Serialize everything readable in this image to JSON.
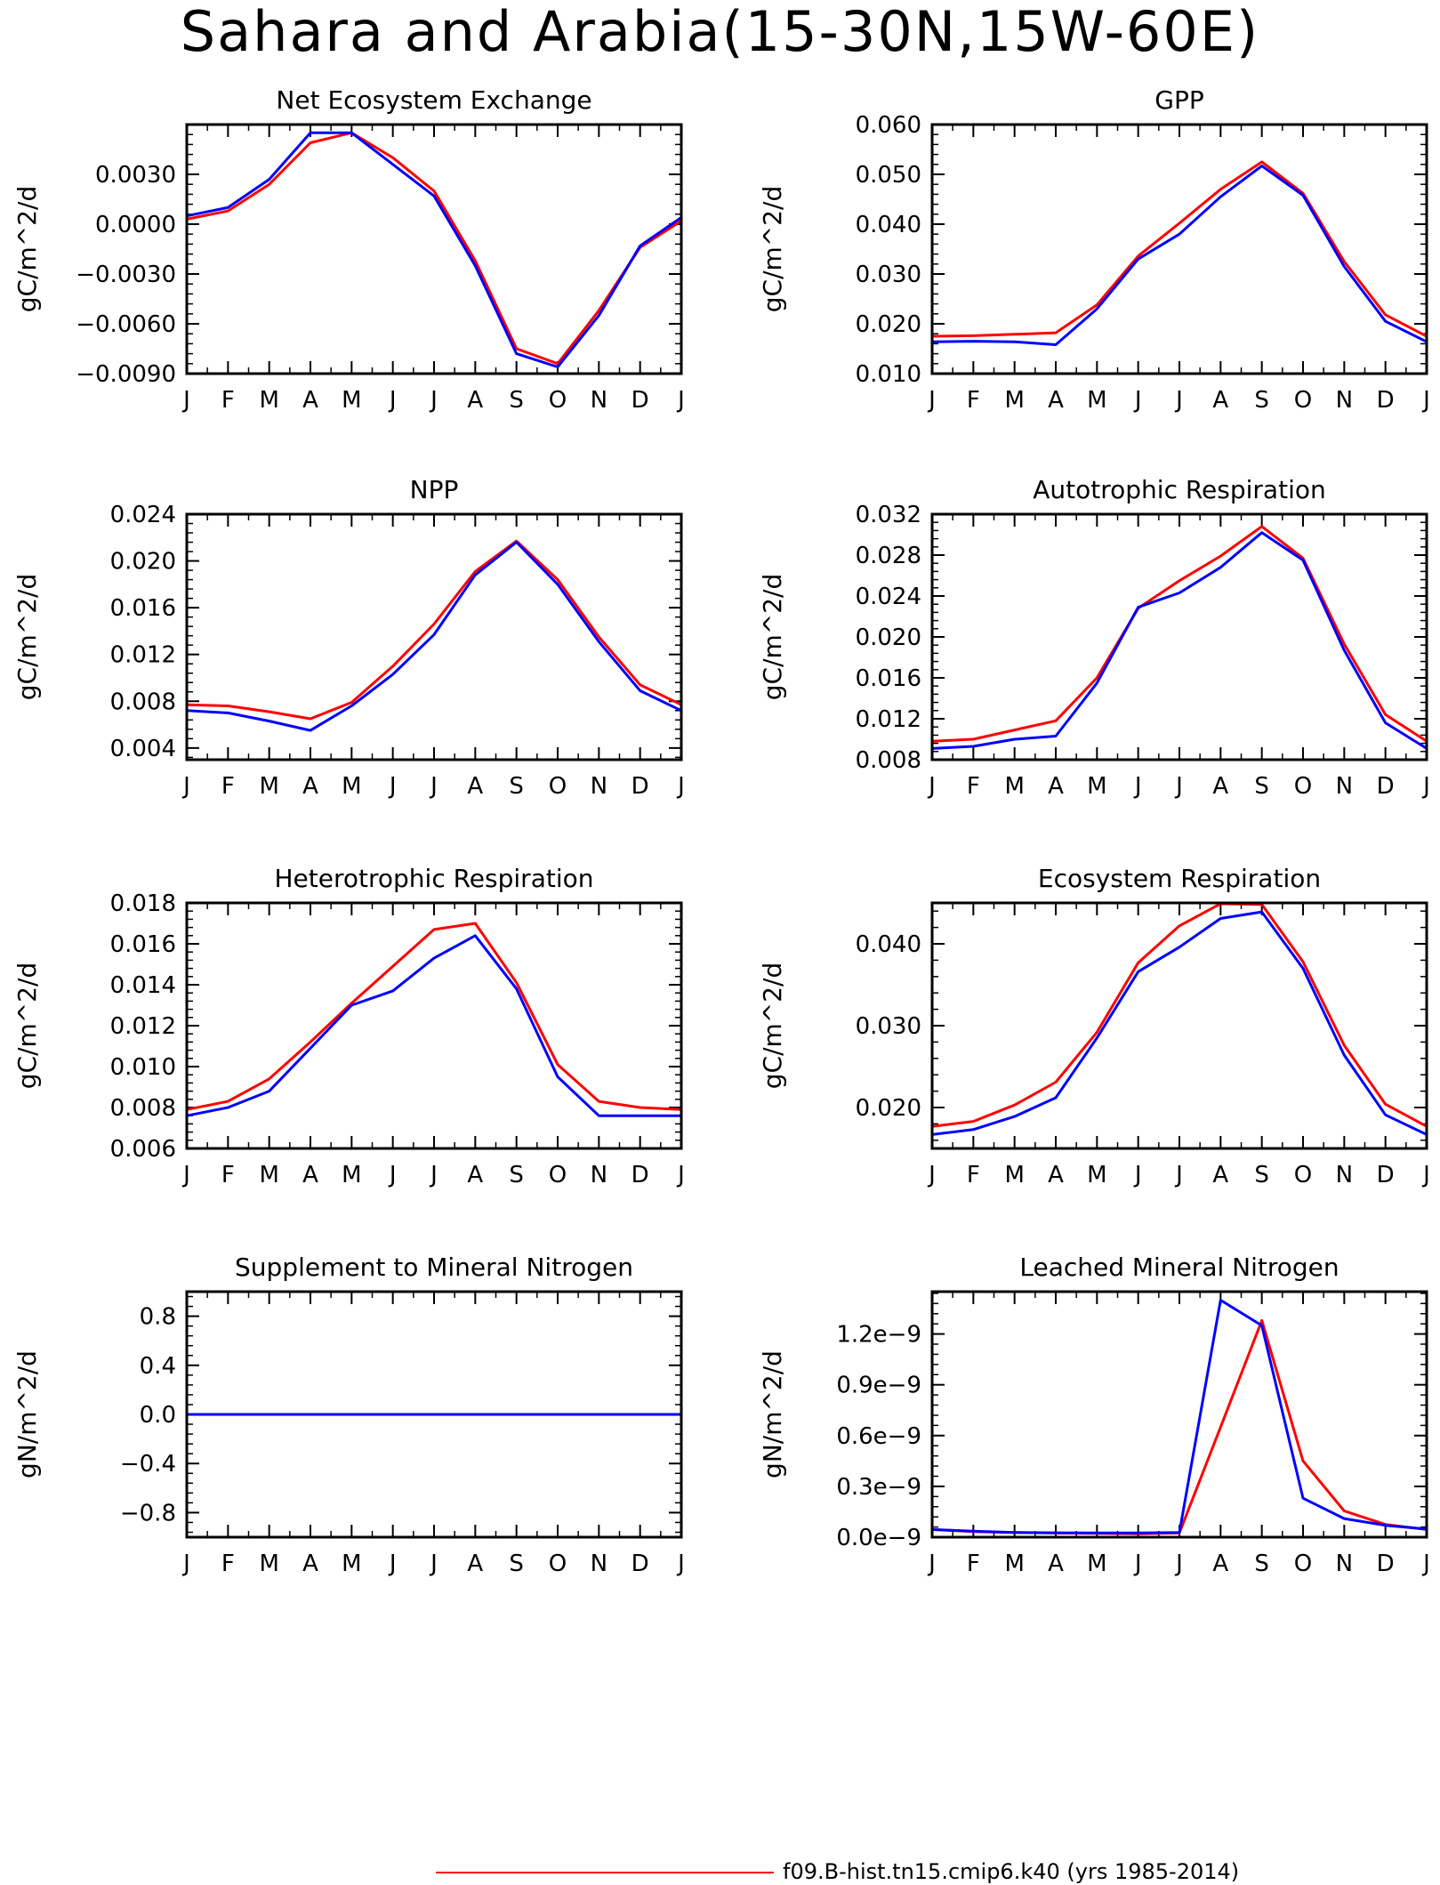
{
  "title": "Sahara and Arabia(15-30N,15W-60E)",
  "legend": {
    "label": "f09.B-hist.tn15.cmip6.k40 (yrs 1985-2014)",
    "color": "#ff0000"
  },
  "colors": {
    "case_a": "#ff0000",
    "case_b": "#0000ff",
    "axes": "#000000"
  },
  "chart_data": [
    {
      "type": "line",
      "title": "Net Ecosystem Exchange",
      "ylabel": "gC/m^2/d",
      "categories": [
        "J",
        "F",
        "M",
        "A",
        "M",
        "J",
        "J",
        "A",
        "S",
        "O",
        "N",
        "D",
        "J"
      ],
      "ylim": [
        -0.009,
        0.006
      ],
      "yticks": [
        -0.009,
        -0.006,
        -0.003,
        0.0,
        0.003
      ],
      "ytick_labels": [
        "−0.0090",
        "−0.0060",
        "−0.0030",
        "0.0000",
        "0.0030"
      ],
      "series": [
        {
          "color": "#ff0000",
          "values": [
            0.0003,
            0.0008,
            0.0024,
            0.0049,
            0.0055,
            0.004,
            0.002,
            -0.0022,
            -0.0075,
            -0.0084,
            -0.0052,
            -0.0014,
            0.0002
          ]
        },
        {
          "color": "#0000ff",
          "values": [
            0.0005,
            0.001,
            0.0027,
            0.0055,
            0.0055,
            0.0036,
            0.0017,
            -0.0025,
            -0.0078,
            -0.0086,
            -0.0055,
            -0.0013,
            0.0004
          ]
        }
      ]
    },
    {
      "type": "line",
      "title": "GPP",
      "ylabel": "gC/m^2/d",
      "categories": [
        "J",
        "F",
        "M",
        "A",
        "M",
        "J",
        "J",
        "A",
        "S",
        "O",
        "N",
        "D",
        "J"
      ],
      "ylim": [
        0.01,
        0.06
      ],
      "yticks": [
        0.01,
        0.02,
        0.03,
        0.04,
        0.05,
        0.06
      ],
      "ytick_labels": [
        "0.010",
        "0.020",
        "0.030",
        "0.040",
        "0.050",
        "0.060"
      ],
      "series": [
        {
          "color": "#ff0000",
          "values": [
            0.0175,
            0.0176,
            0.0179,
            0.0182,
            0.0238,
            0.0336,
            0.0402,
            0.047,
            0.0525,
            0.0462,
            0.0325,
            0.0218,
            0.0175
          ]
        },
        {
          "color": "#0000ff",
          "values": [
            0.0164,
            0.0165,
            0.0164,
            0.0158,
            0.023,
            0.033,
            0.038,
            0.0455,
            0.0517,
            0.0458,
            0.0315,
            0.0205,
            0.0164
          ]
        }
      ]
    },
    {
      "type": "line",
      "title": "NPP",
      "ylabel": "gC/m^2/d",
      "categories": [
        "J",
        "F",
        "M",
        "A",
        "M",
        "J",
        "J",
        "A",
        "S",
        "O",
        "N",
        "D",
        "J"
      ],
      "ylim": [
        0.003,
        0.024
      ],
      "yticks": [
        0.004,
        0.008,
        0.012,
        0.016,
        0.02,
        0.024
      ],
      "ytick_labels": [
        "0.004",
        "0.008",
        "0.012",
        "0.016",
        "0.020",
        "0.024"
      ],
      "series": [
        {
          "color": "#ff0000",
          "values": [
            0.0077,
            0.0076,
            0.0071,
            0.0065,
            0.0079,
            0.011,
            0.0146,
            0.0191,
            0.0217,
            0.0184,
            0.0135,
            0.0094,
            0.0077
          ]
        },
        {
          "color": "#0000ff",
          "values": [
            0.0072,
            0.007,
            0.0063,
            0.0055,
            0.0076,
            0.0103,
            0.0137,
            0.0188,
            0.0216,
            0.018,
            0.0131,
            0.0089,
            0.0072
          ]
        }
      ]
    },
    {
      "type": "line",
      "title": "Autotrophic Respiration",
      "ylabel": "gC/m^2/d",
      "categories": [
        "J",
        "F",
        "M",
        "A",
        "M",
        "J",
        "J",
        "A",
        "S",
        "O",
        "N",
        "D",
        "J"
      ],
      "ylim": [
        0.008,
        0.032
      ],
      "yticks": [
        0.008,
        0.012,
        0.016,
        0.02,
        0.024,
        0.028,
        0.032
      ],
      "ytick_labels": [
        "0.008",
        "0.012",
        "0.016",
        "0.020",
        "0.024",
        "0.028",
        "0.032"
      ],
      "series": [
        {
          "color": "#ff0000",
          "values": [
            0.0098,
            0.01,
            0.0109,
            0.0118,
            0.016,
            0.0228,
            0.0255,
            0.0279,
            0.0308,
            0.0277,
            0.0193,
            0.0124,
            0.0098
          ]
        },
        {
          "color": "#0000ff",
          "values": [
            0.0091,
            0.0093,
            0.01,
            0.0103,
            0.0155,
            0.0229,
            0.0243,
            0.0268,
            0.0302,
            0.0275,
            0.0187,
            0.0116,
            0.0091
          ]
        }
      ]
    },
    {
      "type": "line",
      "title": "Heterotrophic Respiration",
      "ylabel": "gC/m^2/d",
      "categories": [
        "J",
        "F",
        "M",
        "A",
        "M",
        "J",
        "J",
        "A",
        "S",
        "O",
        "N",
        "D",
        "J"
      ],
      "ylim": [
        0.006,
        0.018
      ],
      "yticks": [
        0.006,
        0.008,
        0.01,
        0.012,
        0.014,
        0.016,
        0.018
      ],
      "ytick_labels": [
        "0.006",
        "0.008",
        "0.010",
        "0.012",
        "0.014",
        "0.016",
        "0.018"
      ],
      "series": [
        {
          "color": "#ff0000",
          "values": [
            0.0079,
            0.0083,
            0.0094,
            0.0112,
            0.0131,
            0.0149,
            0.0167,
            0.017,
            0.0141,
            0.0101,
            0.0083,
            0.008,
            0.0079
          ]
        },
        {
          "color": "#0000ff",
          "values": [
            0.0076,
            0.008,
            0.0088,
            0.0109,
            0.013,
            0.0137,
            0.0153,
            0.0164,
            0.0138,
            0.0095,
            0.0076,
            0.0076,
            0.0076
          ]
        }
      ]
    },
    {
      "type": "line",
      "title": "Ecosystem Respiration",
      "ylabel": "gC/m^2/d",
      "categories": [
        "J",
        "F",
        "M",
        "A",
        "M",
        "J",
        "J",
        "A",
        "S",
        "O",
        "N",
        "D",
        "J"
      ],
      "ylim": [
        0.015,
        0.045
      ],
      "yticks": [
        0.02,
        0.03,
        0.04
      ],
      "ytick_labels": [
        "0.020",
        "0.030",
        "0.040"
      ],
      "series": [
        {
          "color": "#ff0000",
          "values": [
            0.0177,
            0.0183,
            0.0203,
            0.0231,
            0.0292,
            0.0377,
            0.0422,
            0.0449,
            0.0448,
            0.0378,
            0.0276,
            0.0204,
            0.0177
          ]
        },
        {
          "color": "#0000ff",
          "values": [
            0.0167,
            0.0173,
            0.0189,
            0.0212,
            0.0285,
            0.0366,
            0.0396,
            0.0431,
            0.0439,
            0.037,
            0.0264,
            0.0191,
            0.0167
          ]
        }
      ]
    },
    {
      "type": "line",
      "title": "Supplement to Mineral Nitrogen",
      "ylabel": "gN/m^2/d",
      "categories": [
        "J",
        "F",
        "M",
        "A",
        "M",
        "J",
        "J",
        "A",
        "S",
        "O",
        "N",
        "D",
        "J"
      ],
      "ylim": [
        -1.0,
        1.0
      ],
      "yticks": [
        -0.8,
        -0.4,
        0.0,
        0.4,
        0.8
      ],
      "ytick_labels": [
        "−0.8",
        "−0.4",
        "0.0",
        "0.4",
        "0.8"
      ],
      "series": [
        {
          "color": "#ff0000",
          "values": [
            0,
            0,
            0,
            0,
            0,
            0,
            0,
            0,
            0,
            0,
            0,
            0,
            0
          ]
        },
        {
          "color": "#0000ff",
          "values": [
            0,
            0,
            0,
            0,
            0,
            0,
            0,
            0,
            0,
            0,
            0,
            0,
            0
          ]
        }
      ]
    },
    {
      "type": "line",
      "title": "Leached Mineral Nitrogen",
      "ylabel": "gN/m^2/d",
      "categories": [
        "J",
        "F",
        "M",
        "A",
        "M",
        "J",
        "J",
        "A",
        "S",
        "O",
        "N",
        "D",
        "J"
      ],
      "ylim": [
        0.0,
        1.45e-09
      ],
      "yticks": [
        0.0,
        3e-10,
        6e-10,
        9e-10,
        1.2e-09
      ],
      "ytick_labels": [
        "0.0e−9",
        "0.3e−9",
        "0.6e−9",
        "0.9e−9",
        "1.2e−9"
      ],
      "series": [
        {
          "color": "#ff0000",
          "values": [
            4.5e-11,
            3.3e-11,
            2.8e-11,
            2.4e-11,
            2.2e-11,
            2e-11,
            2.5e-11,
            6.5e-10,
            1.28e-09,
            4.5e-10,
            1.55e-10,
            7.5e-11,
            4.5e-11
          ]
        },
        {
          "color": "#0000ff",
          "values": [
            4.5e-11,
            3.5e-11,
            2.8e-11,
            2.6e-11,
            2.5e-11,
            2.5e-11,
            2.8e-11,
            1.4e-09,
            1.25e-09,
            2.3e-10,
            1.1e-10,
            7e-11,
            4.8e-11
          ]
        }
      ]
    }
  ]
}
